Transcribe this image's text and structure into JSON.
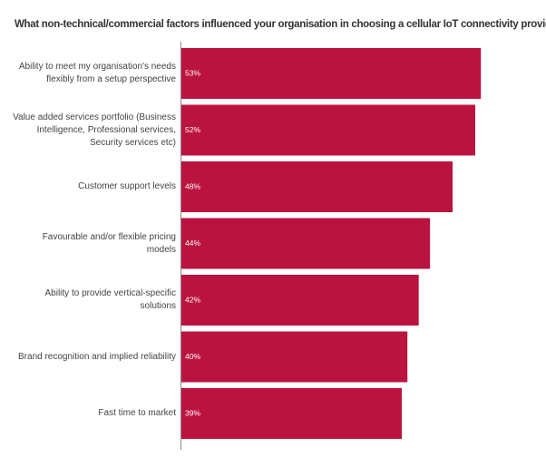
{
  "chart_data": {
    "type": "bar",
    "orientation": "horizontal",
    "title": "What non-technical/commercial factors influenced your organisation in choosing a cellular IoT connectivity provider?",
    "categories": [
      "Ability to meet my organisation's needs flexibly from a setup perspective",
      "Value added services portfolio (Business Intelligence, Professional services, Security services etc)",
      "Customer support levels",
      "Favourable and/or flexible pricing models",
      "Ability to provide vertical-specific solutions",
      "Brand recognition and implied reliability",
      "Fast time to market"
    ],
    "values": [
      53,
      52,
      48,
      44,
      42,
      40,
      39
    ],
    "value_labels": [
      "53%",
      "52%",
      "48%",
      "44%",
      "42%",
      "40%",
      "39%"
    ],
    "color": "#bb133f"
  }
}
